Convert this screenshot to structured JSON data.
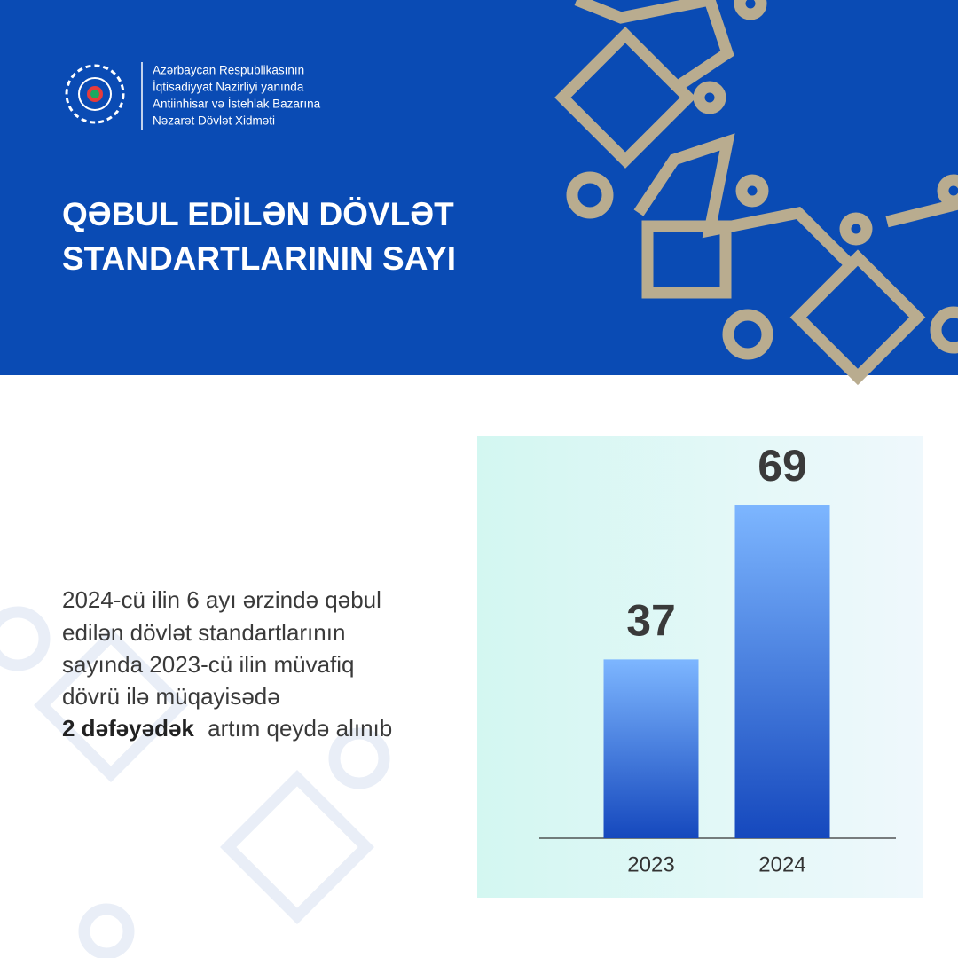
{
  "header": {
    "org_lines": [
      "Azərbaycan Respublikasının",
      "İqtisadiyyat Nazirliyi yanında",
      "Antiinhisar və İstehlak Bazarına",
      "Nəzarət Dövlət Xidməti"
    ],
    "title_lines": [
      "QƏBUL EDİLƏN DÖVLƏT",
      "STANDARTLARININ SAYI"
    ]
  },
  "description": {
    "lines": [
      "2024-cü ilin 6 ayı ərzində qəbul",
      "edilən dövlət standartlarının",
      "sayında 2023-cü ilin müvafiq",
      "dövrü ilə müqayisədə"
    ],
    "emphasis": "2 dəfəyədək",
    "rest": "artım qeydə alınıb"
  },
  "chart_data": {
    "type": "bar",
    "categories": [
      "2023",
      "2024"
    ],
    "values": [
      37,
      69
    ]
  }
}
